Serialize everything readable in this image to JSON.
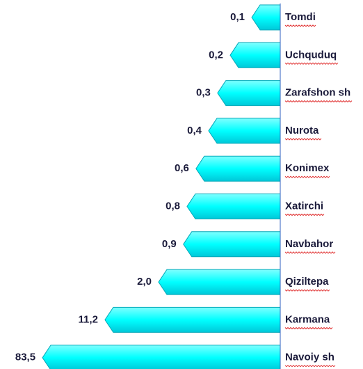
{
  "chart_data": {
    "type": "bar",
    "orientation": "horizontal",
    "log_scale": true,
    "categories": [
      "Tomdi",
      "Uchquduq",
      "Zarafshon sh",
      "Nurota",
      "Konimex",
      "Xatirchi",
      "Navbahor",
      "Qiziltepa",
      "Karmana",
      "Navoiy sh"
    ],
    "values": [
      0.1,
      0.2,
      0.3,
      0.4,
      0.6,
      0.8,
      0.9,
      2.0,
      11.2,
      83.5
    ],
    "value_labels": [
      "0,1",
      "0,2",
      "0,3",
      "0,4",
      "0,6",
      "0,8",
      "0,9",
      "2,0",
      "11,2",
      "83,5"
    ],
    "color": "#00ffff",
    "xlim": [
      0.04,
      100
    ]
  }
}
